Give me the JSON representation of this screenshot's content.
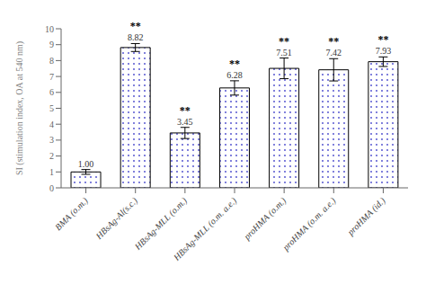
{
  "chart_data": {
    "type": "bar",
    "categories": [
      "BMA (o.m.)",
      "HBsAg-Al(s.c.)",
      "HBsAg-MLL (o.m.)",
      "HBsAg-MLL (o.m. a.e.)",
      "proHMA (o.m.)",
      "proHMA (o.m. a.e.)",
      "proHMA (id.)"
    ],
    "values": [
      1.0,
      8.82,
      3.45,
      6.28,
      7.51,
      7.42,
      7.93
    ],
    "errors": [
      0.15,
      0.25,
      0.35,
      0.45,
      0.65,
      0.7,
      0.3
    ],
    "value_labels": [
      "1.00",
      "8.82",
      "3.45",
      "6.28",
      "7.51",
      "7.42",
      "7.93"
    ],
    "significance": [
      null,
      "**",
      "**",
      "**",
      "**",
      "**",
      "**"
    ],
    "data_labels": true,
    "color": "#4444cc",
    "ylabel": "SI (stimulation index, OA at 540 nm)",
    "ylim": [
      0,
      10
    ],
    "yticks": [
      0,
      1,
      2,
      3,
      4,
      5,
      6,
      7,
      8,
      9,
      10
    ]
  }
}
